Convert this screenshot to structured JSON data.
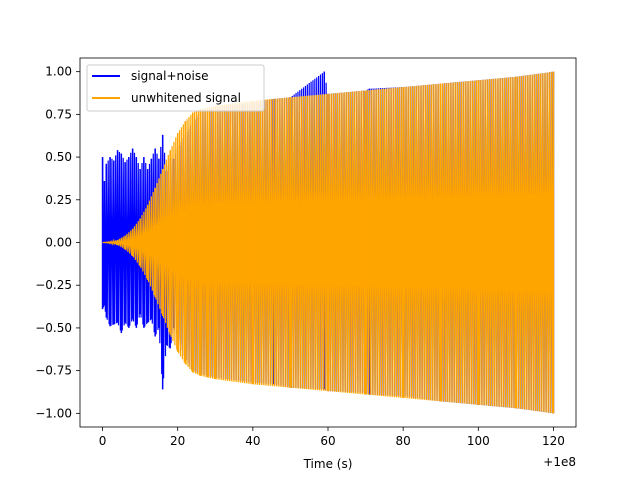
{
  "chart_data": {
    "type": "line",
    "title": "",
    "xlabel": "Time (s)",
    "ylabel": "",
    "x_offset_label": "+1e8",
    "xlim": [
      -6,
      126
    ],
    "ylim": [
      -1.08,
      1.08
    ],
    "x_ticks": [
      0,
      20,
      40,
      60,
      80,
      100,
      120
    ],
    "x_tick_labels": [
      "0",
      "20",
      "40",
      "60",
      "80",
      "100",
      "120"
    ],
    "y_ticks": [
      -1.0,
      -0.75,
      -0.5,
      -0.25,
      0.0,
      0.25,
      0.5,
      0.75,
      1.0
    ],
    "y_tick_labels": [
      "−1.00",
      "−0.75",
      "−0.50",
      "−0.25",
      "0.00",
      "0.25",
      "0.50",
      "0.75",
      "1.00"
    ],
    "grid": false,
    "legend_position": "top-left",
    "series": [
      {
        "name": "signal+noise",
        "color": "#0000ff",
        "envelope": {
          "x": [
            0,
            0.5,
            1,
            2,
            3,
            4,
            5,
            6,
            7,
            8,
            9,
            10,
            11,
            12,
            13,
            14,
            15,
            16,
            17,
            18,
            19,
            20,
            22,
            24,
            26,
            28,
            30,
            40,
            45.5,
            50,
            59,
            60,
            70,
            71,
            80,
            90,
            100,
            110,
            120
          ],
          "upper": [
            0.5,
            0.36,
            0.46,
            0.5,
            0.48,
            0.54,
            0.52,
            0.47,
            0.5,
            0.55,
            0.5,
            0.43,
            0.5,
            0.43,
            0.49,
            0.55,
            0.49,
            0.63,
            0.42,
            0.49,
            0.49,
            0.55,
            0.63,
            0.7,
            0.76,
            0.78,
            0.79,
            0.82,
            0.84,
            0.85,
            1.0,
            0.87,
            0.89,
            0.9,
            0.91,
            0.93,
            0.95,
            0.97,
            1.0
          ],
          "lower": [
            -0.39,
            -0.37,
            -0.44,
            -0.49,
            -0.48,
            -0.47,
            -0.53,
            -0.47,
            -0.5,
            -0.45,
            -0.5,
            -0.42,
            -0.5,
            -0.47,
            -0.45,
            -0.55,
            -0.5,
            -0.86,
            -0.6,
            -0.62,
            -0.5,
            -0.55,
            -0.68,
            -0.75,
            -0.77,
            -0.78,
            -0.79,
            -0.82,
            -0.83,
            -0.85,
            -0.86,
            -0.87,
            -0.88,
            -0.89,
            -0.9,
            -0.93,
            -0.95,
            -0.97,
            -1.0
          ]
        }
      },
      {
        "name": "unwhitened signal",
        "color": "#ffa500",
        "envelope": {
          "x": [
            0,
            2,
            4,
            6,
            8,
            10,
            12,
            14,
            16,
            18,
            20,
            22,
            24,
            26,
            28,
            30,
            40,
            50,
            60,
            70,
            80,
            90,
            100,
            110,
            120
          ],
          "upper": [
            0.0,
            0.005,
            0.015,
            0.04,
            0.08,
            0.14,
            0.22,
            0.32,
            0.43,
            0.54,
            0.64,
            0.71,
            0.76,
            0.78,
            0.79,
            0.8,
            0.83,
            0.85,
            0.87,
            0.89,
            0.91,
            0.93,
            0.95,
            0.97,
            1.0
          ],
          "lower": [
            0.0,
            -0.005,
            -0.015,
            -0.04,
            -0.08,
            -0.14,
            -0.22,
            -0.32,
            -0.43,
            -0.54,
            -0.64,
            -0.71,
            -0.76,
            -0.78,
            -0.79,
            -0.8,
            -0.83,
            -0.85,
            -0.87,
            -0.89,
            -0.91,
            -0.93,
            -0.95,
            -0.97,
            -1.0
          ]
        }
      }
    ]
  }
}
